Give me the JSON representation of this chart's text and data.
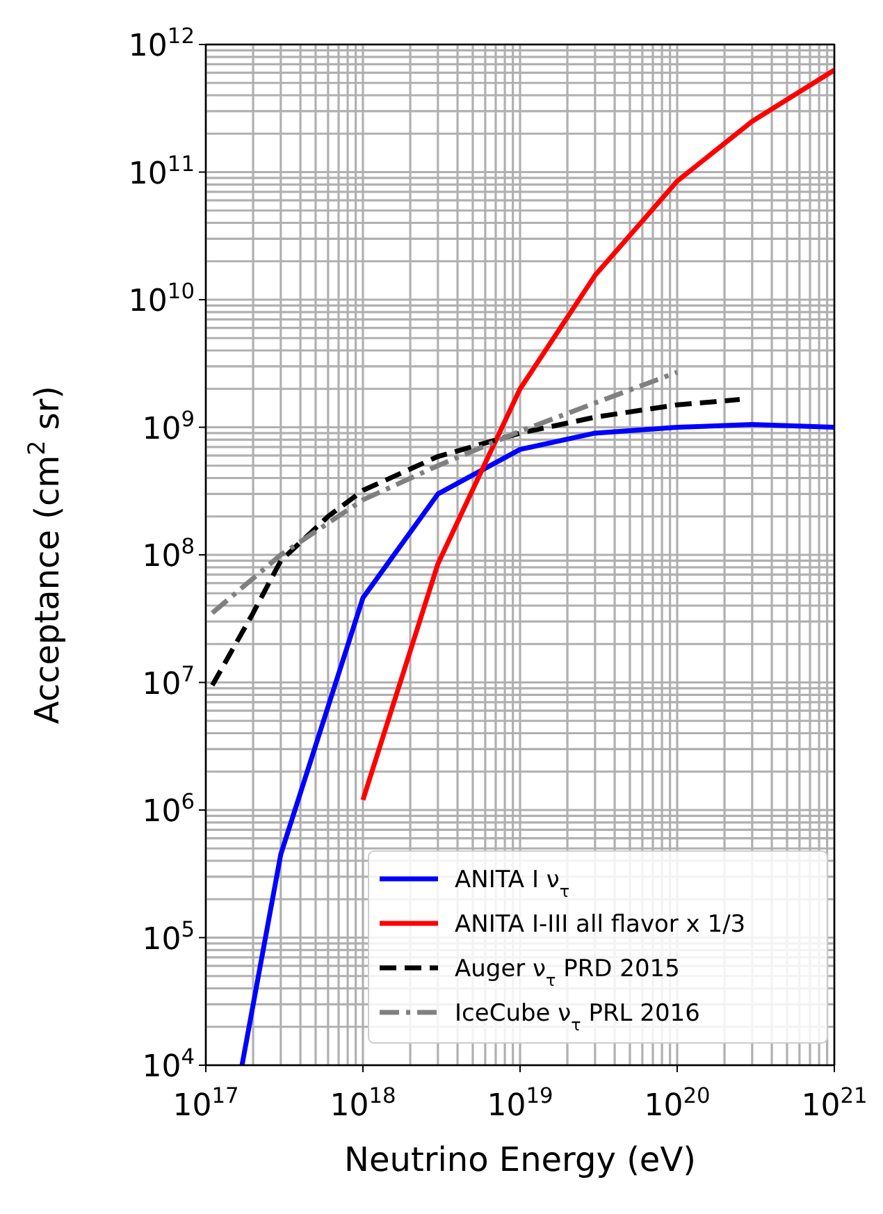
{
  "chart_data": {
    "type": "line",
    "xlabel": "Neutrino Energy (eV)",
    "ylabel": "Acceptance (cm$^{2}$ sr)",
    "log": "xy",
    "grid": true,
    "legend": "bottom right",
    "xlim": [
      1e+17,
      1e+21
    ],
    "ylim": [
      10000.0,
      1000000000000.0
    ],
    "xticks": [
      {
        "value": 1e+17,
        "label": "10$^{17}$"
      },
      {
        "value": 1e+18,
        "label": "10$^{18}$"
      },
      {
        "value": 1e+19,
        "label": "10$^{19}$"
      },
      {
        "value": 1e+20,
        "label": "10$^{20}$"
      },
      {
        "value": 1e+21,
        "label": "10$^{21}$"
      }
    ],
    "yticks": [
      {
        "value": 10000.0,
        "label": "10$^{4}$"
      },
      {
        "value": 100000.0,
        "label": "10$^{5}$"
      },
      {
        "value": 1000000.0,
        "label": "10$^{6}$"
      },
      {
        "value": 10000000.0,
        "label": "10$^{7}$"
      },
      {
        "value": 100000000.0,
        "label": "10$^{8}$"
      },
      {
        "value": 1000000000.0,
        "label": "10$^{9}$"
      },
      {
        "value": 10000000000.0,
        "label": "10$^{10}$"
      },
      {
        "value": 100000000000.0,
        "label": "10$^{11}$"
      },
      {
        "value": 1000000000000.0,
        "label": "10$^{12}$"
      }
    ],
    "series": [
      {
        "name": "ANITA I ν$_{τ}$",
        "color": "#0000ff",
        "line_style": "solid",
        "x": [
          1.7e+17,
          3e+17,
          1e+18,
          3e+18,
          1e+19,
          3e+19,
          1e+20,
          3e+20,
          1e+21
        ],
        "values": [
          10000.0,
          450000.0,
          46000000.0,
          300000000.0,
          670000000.0,
          900000000.0,
          1000000000.0,
          1050000000.0,
          1000000000.0
        ]
      },
      {
        "name": "ANITA I-III all flavor x 1/3",
        "color": "#ff0000",
        "line_style": "solid",
        "x": [
          1e+18,
          3e+18,
          1e+19,
          3e+19,
          1e+20,
          3e+20,
          1e+21
        ],
        "values": [
          1200000.0,
          85000000.0,
          2000000000.0,
          15500000000.0,
          85000000000.0,
          250000000000.0,
          630000000000.0
        ]
      },
      {
        "name": "Auger ν$_{τ}$ PRD 2015",
        "color": "#000000",
        "line_style": "dashed",
        "x": [
          1.1e+17,
          2e+17,
          3e+17,
          6e+17,
          1e+18,
          3e+18,
          1e+19,
          3e+19,
          1e+20,
          2.5e+20
        ],
        "values": [
          9500000.0,
          35000000.0,
          90000000.0,
          200000000.0,
          320000000.0,
          590000000.0,
          900000000.0,
          1200000000.0,
          1500000000.0,
          1650000000.0
        ]
      },
      {
        "name": "IceCube ν$_{τ}$ PRL 2016",
        "color": "#808080",
        "line_style": "dashdot",
        "x": [
          1.1e+17,
          3e+17,
          1e+18,
          3e+18,
          1e+19,
          3e+19,
          1e+20
        ],
        "values": [
          35000000.0,
          100000000.0,
          270000000.0,
          500000000.0,
          930000000.0,
          1550000000.0,
          2700000000.0
        ]
      }
    ]
  }
}
